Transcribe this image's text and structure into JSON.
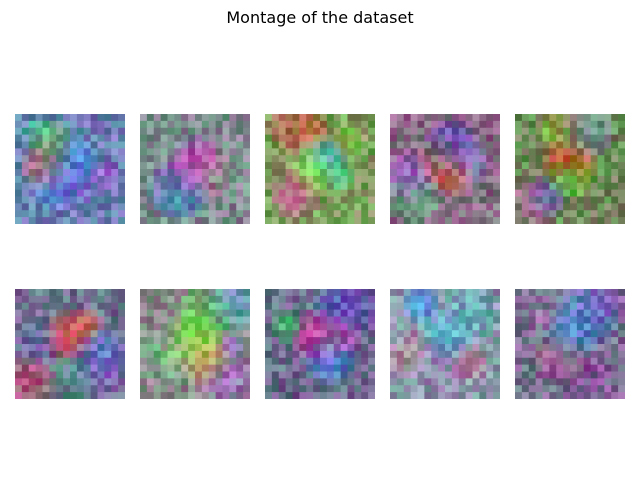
{
  "figure": {
    "title": "Montage of the dataset"
  },
  "montage": {
    "tiles": [
      {
        "base": "#6b82b3",
        "spots": [
          "#2f8bff",
          "#ff5a4a",
          "#27c58a",
          "#a35bd6",
          "#4aa6ff",
          "#2fb79e",
          "#7d4dd0",
          "#d6a24a"
        ]
      },
      {
        "base": "#7f8c8f",
        "spots": [
          "#b22fd2",
          "#3b7cff",
          "#46b06c",
          "#c94a9a",
          "#4f74c7",
          "#9a8ea0",
          "#e04a88",
          "#6ab08b"
        ]
      },
      {
        "base": "#7f9a5e",
        "spots": [
          "#2cff8a",
          "#d67a34",
          "#c8d04a",
          "#3ad19a",
          "#d45aa0",
          "#8fd54a",
          "#5a8cff",
          "#c24f40"
        ]
      },
      {
        "base": "#8a6c86",
        "spots": [
          "#ff5a2a",
          "#3f9f51",
          "#4f3ad8",
          "#a64be0",
          "#4bbd73",
          "#d4582f",
          "#6a4cc9",
          "#7b86d6"
        ]
      },
      {
        "base": "#6e8a5a",
        "spots": [
          "#ff2f1a",
          "#6ddd1a",
          "#3b8fe0",
          "#30c490",
          "#c55ab0",
          "#8dcd2a",
          "#c37a4a",
          "#4a70d0"
        ]
      },
      {
        "base": "#6f7590",
        "spots": [
          "#ff4a3a",
          "#3c8f6a",
          "#9d4ad8",
          "#4a80e0",
          "#cc4a6a",
          "#6a5ab0",
          "#3fb0a0",
          "#e05a3a"
        ]
      },
      {
        "base": "#8a8b8a",
        "spots": [
          "#7aff2a",
          "#5cd44a",
          "#8a6cd0",
          "#b0b060",
          "#4a9ad0",
          "#a06ad0",
          "#e0b04a",
          "#6ac08a"
        ]
      },
      {
        "base": "#6c6a8c",
        "spots": [
          "#ff2aa6",
          "#d040c0",
          "#2ad65a",
          "#3c8fff",
          "#6a3fcb",
          "#b84aa8",
          "#3abf80",
          "#4a6ad0"
        ]
      },
      {
        "base": "#8a9aaa",
        "spots": [
          "#40b0e0",
          "#d86a9a",
          "#3a9dff",
          "#c07a90",
          "#5ab0c0",
          "#a088b8",
          "#70c0d0",
          "#d08ab0"
        ]
      },
      {
        "base": "#7a6f90",
        "spots": [
          "#3a8fe0",
          "#9a4ad0",
          "#6a5ab8",
          "#c0605a",
          "#4a6ad0",
          "#b08ab8",
          "#5aa0d8",
          "#8a4aa0"
        ]
      }
    ]
  }
}
